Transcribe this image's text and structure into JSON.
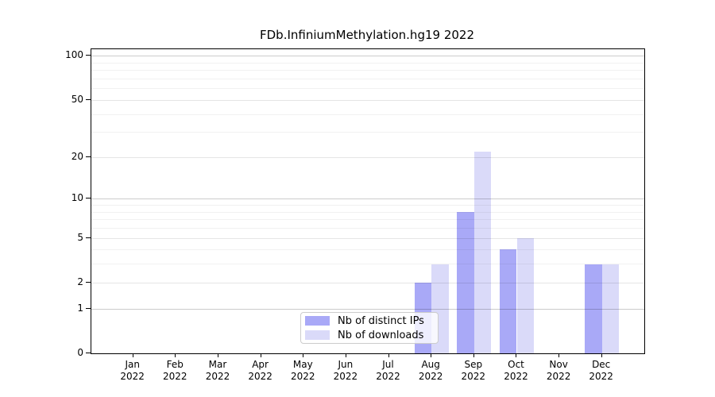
{
  "chart_data": {
    "type": "bar",
    "title": "FDb.InfiniumMethylation.hg19 2022",
    "x": {
      "categories": [
        "Jan",
        "Feb",
        "Mar",
        "Apr",
        "May",
        "Jun",
        "Jul",
        "Aug",
        "Sep",
        "Oct",
        "Nov",
        "Dec"
      ],
      "year_label": "2022"
    },
    "series": [
      {
        "name": "Nb of distinct IPs",
        "color": "#a9a9f7",
        "values": [
          null,
          null,
          null,
          null,
          null,
          null,
          null,
          2,
          8,
          4,
          null,
          3
        ]
      },
      {
        "name": "Nb of downloads",
        "color": "#dadaf9",
        "values": [
          null,
          null,
          null,
          null,
          null,
          null,
          null,
          3,
          22,
          5,
          null,
          3
        ]
      }
    ],
    "y_axis": {
      "scale": "log1p",
      "tick_values": [
        0,
        1,
        2,
        5,
        10,
        20,
        50,
        100
      ],
      "tick_labels": [
        "0",
        "1",
        "2",
        "5",
        "10",
        "20",
        "50",
        "100"
      ],
      "decade_values": [
        1,
        10,
        100
      ],
      "minor_gridline_values": [
        3,
        4,
        6,
        7,
        8,
        9,
        30,
        40,
        60,
        70,
        80,
        90
      ],
      "top_value": 111
    },
    "legend": {
      "position": "bottom-center"
    },
    "grid": true,
    "axis_color": "#000000"
  }
}
